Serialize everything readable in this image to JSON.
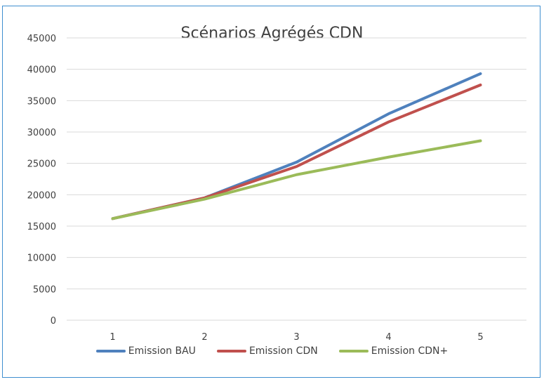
{
  "chart_data": {
    "type": "line",
    "title": "Scénarios Agrégés CDN",
    "x": [
      "1",
      "2",
      "3",
      "4",
      "5"
    ],
    "y_ticks": [
      "0",
      "5000",
      "10000",
      "15000",
      "20000",
      "25000",
      "30000",
      "35000",
      "40000",
      "45000"
    ],
    "ylim": [
      0,
      45000
    ],
    "grid": true,
    "legend_position": "bottom",
    "series": [
      {
        "name": "Emission BAU",
        "color": "#4f81bd",
        "values": [
          16200,
          19500,
          25200,
          32900,
          39300
        ]
      },
      {
        "name": "Emission CDN",
        "color": "#c0504d",
        "values": [
          16200,
          19500,
          24500,
          31600,
          37500
        ]
      },
      {
        "name": "Emission CDN+",
        "color": "#9bbb59",
        "values": [
          16200,
          19300,
          23200,
          26000,
          28600
        ]
      }
    ]
  }
}
